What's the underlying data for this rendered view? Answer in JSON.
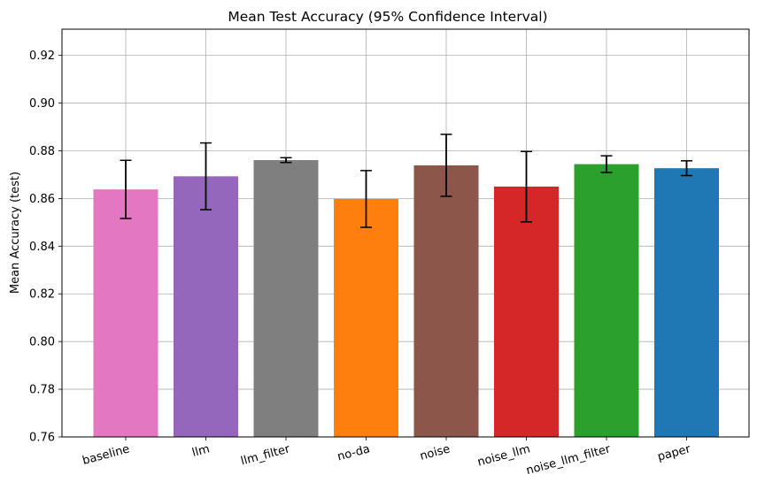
{
  "chart_data": {
    "type": "bar",
    "title": "Mean Test Accuracy (95% Confidence Interval)",
    "xlabel": "",
    "ylabel": "Mean Accuracy (test)",
    "ylim": [
      0.76,
      0.931
    ],
    "yticks": [
      "0.76",
      "0.78",
      "0.80",
      "0.82",
      "0.84",
      "0.86",
      "0.88",
      "0.90",
      "0.92"
    ],
    "grid": true,
    "categories": [
      "baseline",
      "llm",
      "llm_filter",
      "no-da",
      "noise",
      "noise_llm",
      "noise_llm_filter",
      "paper"
    ],
    "values": [
      0.8638,
      0.8693,
      0.8761,
      0.8598,
      0.8739,
      0.865,
      0.8744,
      0.8727
    ],
    "error_low": [
      0.8516,
      0.8553,
      0.8751,
      0.8479,
      0.8609,
      0.8502,
      0.8709,
      0.8696
    ],
    "error_high": [
      0.876,
      0.8833,
      0.8771,
      0.8717,
      0.8869,
      0.8797,
      0.8779,
      0.8758
    ],
    "colors": [
      "#e377c2",
      "#9467bd",
      "#7f7f7f",
      "#ff7f0e",
      "#8c564b",
      "#d62728",
      "#2ca02c",
      "#1f77b4"
    ]
  }
}
